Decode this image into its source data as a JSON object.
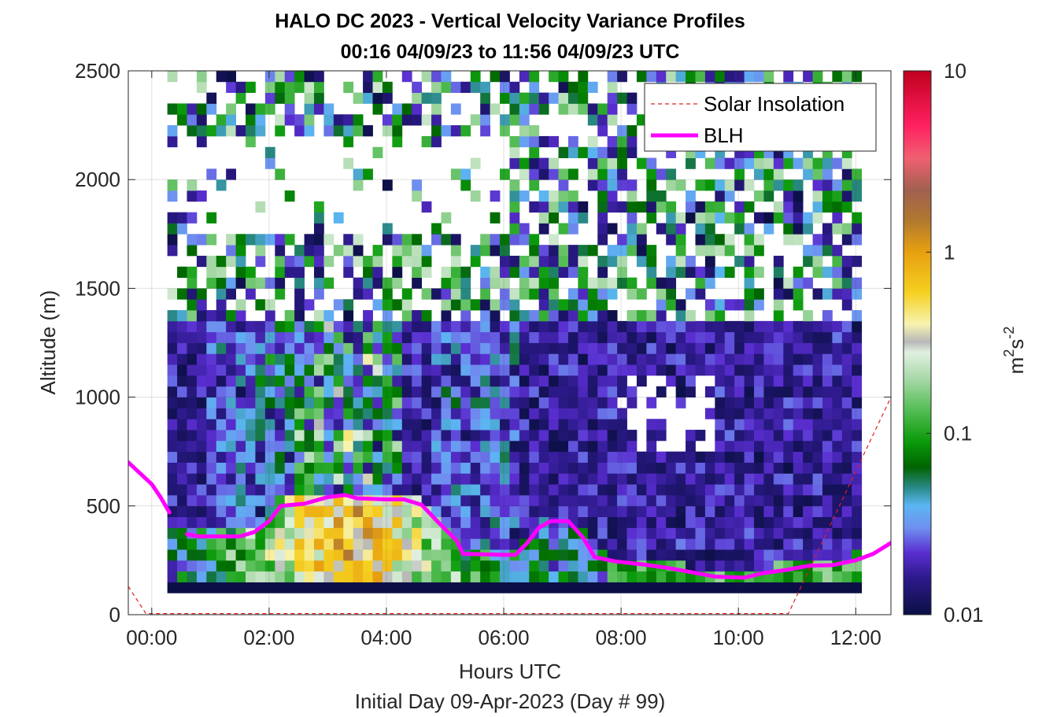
{
  "chart_data": {
    "type": "heatmap",
    "title": "HALO DC 2023 - Vertical Velocity Variance Profiles",
    "subtitle": "00:16 04/09/23 to 11:56 04/09/23  UTC",
    "xlabel": "Hours UTC",
    "xlabel2": "Initial Day 09-Apr-2023 (Day # 99)",
    "ylabel": "Altitude (m)",
    "xlim": [
      -0.4,
      12.6
    ],
    "ylim": [
      0,
      2500
    ],
    "x_ticks": [
      0,
      2,
      4,
      6,
      8,
      10,
      12
    ],
    "x_tick_labels": [
      "00:00",
      "02:00",
      "04:00",
      "06:00",
      "08:00",
      "10:00",
      "12:00"
    ],
    "y_ticks": [
      0,
      500,
      1000,
      1500,
      2000,
      2500
    ],
    "y_tick_labels": [
      "0",
      "500",
      "1000",
      "1500",
      "2000",
      "2500"
    ],
    "grid": true,
    "legend": {
      "placement": "top-right",
      "entries": [
        {
          "name": "Solar Insolation",
          "color": "#e0201f",
          "style": "dashed"
        },
        {
          "name": "BLH",
          "color": "#ff00ff",
          "style": "solid"
        }
      ]
    },
    "colorbar": {
      "scale": "log",
      "range": [
        0.01,
        10
      ],
      "ticks": [
        0.01,
        0.1,
        1,
        10
      ],
      "tick_labels": [
        "0.01",
        "0.1",
        "1",
        "10"
      ],
      "label": "m²s⁻²",
      "label_base": "m",
      "label_exp1": "2",
      "label_mid": "s",
      "label_exp2": "-2",
      "stops": [
        {
          "v": 0.01,
          "color": "#0b0f44"
        },
        {
          "v": 0.016,
          "color": "#2d1a8c"
        },
        {
          "v": 0.022,
          "color": "#5a2ed0"
        },
        {
          "v": 0.03,
          "color": "#6f8ff0"
        },
        {
          "v": 0.04,
          "color": "#5bb6f2"
        },
        {
          "v": 0.05,
          "color": "#2b8a8a"
        },
        {
          "v": 0.065,
          "color": "#006400"
        },
        {
          "v": 0.09,
          "color": "#0a9a0a"
        },
        {
          "v": 0.14,
          "color": "#5cc05c"
        },
        {
          "v": 0.2,
          "color": "#a8d8a8"
        },
        {
          "v": 0.28,
          "color": "#e0f0e0"
        },
        {
          "v": 0.32,
          "color": "#b8b8b8"
        },
        {
          "v": 0.4,
          "color": "#f7f3b0"
        },
        {
          "v": 0.6,
          "color": "#f5d020"
        },
        {
          "v": 1.0,
          "color": "#e8a010"
        },
        {
          "v": 1.5,
          "color": "#b07830"
        },
        {
          "v": 2.2,
          "color": "#a06050"
        },
        {
          "v": 3.3,
          "color": "#f06070"
        },
        {
          "v": 5.0,
          "color": "#ff2060"
        },
        {
          "v": 10,
          "color": "#c0001e"
        }
      ]
    },
    "blh": {
      "name": "BLH",
      "segments": [
        [
          [
            -0.4,
            700
          ],
          [
            -0.2,
            650
          ],
          [
            0.0,
            600
          ],
          [
            0.15,
            540
          ],
          [
            0.3,
            470
          ]
        ],
        [
          [
            0.6,
            370
          ],
          [
            0.8,
            360
          ],
          [
            1.2,
            360
          ],
          [
            1.5,
            360
          ],
          [
            1.75,
            380
          ],
          [
            2.0,
            430
          ],
          [
            2.2,
            500
          ],
          [
            2.6,
            510
          ],
          [
            3.0,
            540
          ],
          [
            3.3,
            550
          ],
          [
            3.5,
            535
          ],
          [
            4.0,
            530
          ],
          [
            4.3,
            530
          ],
          [
            4.6,
            505
          ],
          [
            4.9,
            420
          ],
          [
            5.2,
            340
          ],
          [
            5.3,
            280
          ],
          [
            6.0,
            275
          ],
          [
            6.2,
            275
          ],
          [
            6.4,
            330
          ],
          [
            6.6,
            400
          ],
          [
            6.8,
            430
          ],
          [
            7.1,
            430
          ],
          [
            7.35,
            355
          ],
          [
            7.55,
            265
          ],
          [
            7.9,
            245
          ],
          [
            8.4,
            230
          ],
          [
            8.8,
            215
          ],
          [
            9.2,
            195
          ],
          [
            9.6,
            175
          ],
          [
            10.1,
            170
          ],
          [
            10.4,
            190
          ],
          [
            10.8,
            205
          ],
          [
            11.2,
            225
          ],
          [
            11.6,
            228
          ],
          [
            12.0,
            250
          ],
          [
            12.3,
            280
          ],
          [
            12.6,
            330
          ]
        ]
      ]
    },
    "solar_insolation": {
      "name": "Solar Insolation",
      "points": [
        [
          -0.4,
          130
        ],
        [
          -0.1,
          5
        ],
        [
          10.85,
          5
        ],
        [
          12.6,
          1000
        ]
      ]
    }
  }
}
